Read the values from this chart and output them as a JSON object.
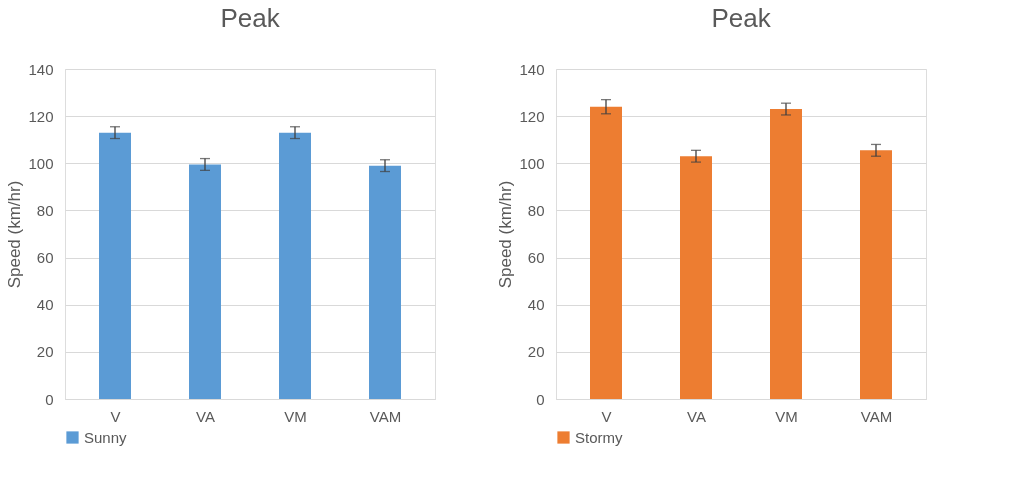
{
  "chart_data": [
    {
      "type": "bar",
      "title": "Peak",
      "ylabel": "Speed (km/hr)",
      "categories": [
        "V",
        "VA",
        "VM",
        "VAM"
      ],
      "series": [
        {
          "name": "Sunny",
          "color": "#5b9bd5",
          "values": [
            113,
            99.5,
            113,
            99
          ],
          "errors": [
            2.5,
            2.5,
            2.5,
            2.5
          ]
        }
      ],
      "ylim": [
        0,
        140
      ],
      "yticks": [
        0,
        20,
        40,
        60,
        80,
        100,
        120,
        140
      ],
      "grid": "y",
      "legend": "bottom"
    },
    {
      "type": "bar",
      "title": "Peak",
      "ylabel": "Speed (km/hr)",
      "categories": [
        "V",
        "VA",
        "VM",
        "VAM"
      ],
      "series": [
        {
          "name": "Stormy",
          "color": "#ed7d31",
          "values": [
            124,
            103,
            123,
            105.5
          ],
          "errors": [
            3,
            2.5,
            2.5,
            2.5
          ]
        }
      ],
      "ylim": [
        0,
        140
      ],
      "yticks": [
        0,
        20,
        40,
        60,
        80,
        100,
        120,
        140
      ],
      "grid": "y",
      "legend": "bottom"
    }
  ]
}
